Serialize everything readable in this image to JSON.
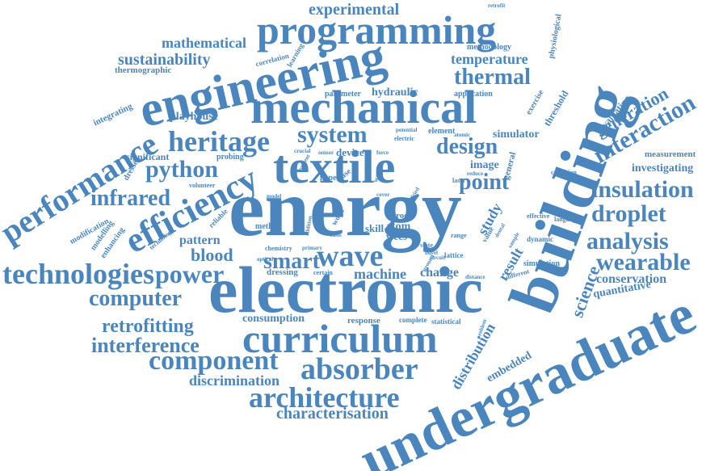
{
  "color": "#4a86bd",
  "words": {
    "energy": "energy",
    "electronic": "electronic",
    "building": "building",
    "undergraduate": "undergraduate",
    "engineering": "engineering",
    "mechanical": "mechanical",
    "textile": "textile",
    "programming": "programming",
    "curriculum": "curriculum",
    "efficiency": "efficiency",
    "performance": "performance",
    "technologies": "technologies",
    "architecture": "architecture",
    "absorber": "absorber",
    "component": "component",
    "heritage": "heritage",
    "wave": "wave",
    "smart": "smart",
    "power": "power",
    "computer": "computer",
    "interference": "interference",
    "retrofitting": "retrofitting",
    "analysis": "analysis",
    "wearable": "wearable",
    "insulation": "insulation",
    "droplet": "droplet",
    "interaction": "interaction",
    "generation": "generation",
    "science": "science",
    "thermal": "thermal",
    "temperature": "temperature",
    "design": "design",
    "system": "system",
    "python": "python",
    "infrared": "infrared",
    "point": "point",
    "blood": "blood",
    "pattern": "pattern",
    "sustainability": "sustainability",
    "mathematical": "mathematical",
    "experimental": "experimental",
    "characterisation": "characterisation",
    "discrimination": "discrimination",
    "consumption": "consumption",
    "machine": "machine",
    "change": "change",
    "distribution": "distribution",
    "embedded": "embedded",
    "result": "result",
    "study": "study",
    "conservation": "conservation",
    "quantitative": "quantitative",
    "investigating": "investigating",
    "measurement": "measurement",
    "evaluating": "evaluating",
    "threshold": "threshold",
    "exercise": "exercise",
    "physiological": "physiological",
    "methodology": "methodology",
    "hydraulic": "hydraulic",
    "application": "application",
    "parameter": "parameter",
    "playhouse": "playhouse",
    "integrating": "integrating",
    "thermographic": "thermographic",
    "correlation": "correlation",
    "learning": "learning",
    "significant": "significant",
    "probing": "probing",
    "dressed": "dressed",
    "modification": "modification",
    "modelling": "modelling",
    "enhancing": "enhancing",
    "technology": "technology",
    "reliable": "reliable",
    "volunteer": "volunteer",
    "simulator": "simulator",
    "device": "device",
    "image": "image",
    "general": "general",
    "element": "element",
    "potential": "potential",
    "electric": "electric",
    "paper": "paper",
    "case": "case",
    "method": "method",
    "addition": "addition",
    "work": "work",
    "proc": "proc",
    "atom": "atom",
    "wecs": "wecs",
    "skill": "skill",
    "lattice": "lattice",
    "chemistry": "chemistry",
    "primary": "primary",
    "dressing": "dressing",
    "certain": "certain",
    "response": "response",
    "complete": "complete",
    "statistical": "statistical",
    "simulation": "simulation",
    "dynamic": "dynamic",
    "effective": "effective",
    "language": "language",
    "condition": "condition",
    "laser": "laser",
    "range": "range",
    "value": "value",
    "sample": "sample",
    "different": "different",
    "distance": "distance",
    "state": "state",
    "novel": "novel",
    "problem": "problem",
    "retrofit": "retrofit",
    "atomic": "atomic",
    "reduce": "reduce",
    "force": "force",
    "wear": "wear",
    "dried": "dried",
    "cover": "cover",
    "crucial": "crucial",
    "sensor": "sensor",
    "present": "present",
    "optical": "optical",
    "model": "model",
    "circuit": "circuit",
    "ground": "ground",
    "dental": "dental",
    "basis": "basis"
  }
}
